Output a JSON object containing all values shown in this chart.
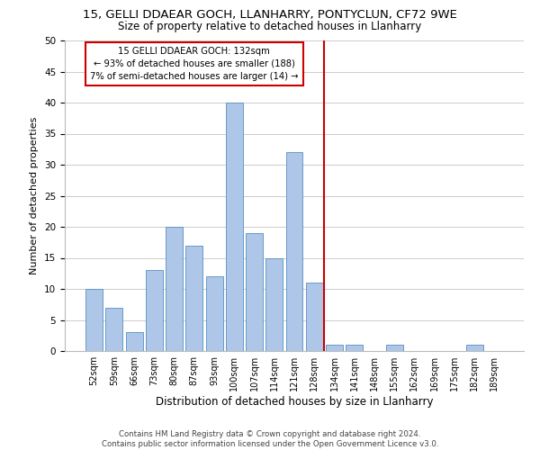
{
  "title": "15, GELLI DDAEAR GOCH, LLANHARRY, PONTYCLUN, CF72 9WE",
  "subtitle": "Size of property relative to detached houses in Llanharry",
  "xlabel": "Distribution of detached houses by size in Llanharry",
  "ylabel": "Number of detached properties",
  "bar_labels": [
    "52sqm",
    "59sqm",
    "66sqm",
    "73sqm",
    "80sqm",
    "87sqm",
    "93sqm",
    "100sqm",
    "107sqm",
    "114sqm",
    "121sqm",
    "128sqm",
    "134sqm",
    "141sqm",
    "148sqm",
    "155sqm",
    "162sqm",
    "169sqm",
    "175sqm",
    "182sqm",
    "189sqm"
  ],
  "bar_values": [
    10,
    7,
    3,
    13,
    20,
    17,
    12,
    40,
    19,
    15,
    32,
    11,
    1,
    1,
    0,
    1,
    0,
    0,
    0,
    1,
    0
  ],
  "bar_color": "#aec6e8",
  "bar_edge_color": "#5590c0",
  "property_line_label": "15 GELLI DDAEAR GOCH: 132sqm",
  "annotation_line1": "← 93% of detached houses are smaller (188)",
  "annotation_line2": "7% of semi-detached houses are larger (14) →",
  "annotation_box_color": "#cc0000",
  "annotation_box_face": "#ffffff",
  "vline_color": "#cc0000",
  "vline_x": 11.5,
  "ylim": [
    0,
    50
  ],
  "yticks": [
    0,
    5,
    10,
    15,
    20,
    25,
    30,
    35,
    40,
    45,
    50
  ],
  "background_color": "#ffffff",
  "grid_color": "#cccccc",
  "footer_line1": "Contains HM Land Registry data © Crown copyright and database right 2024.",
  "footer_line2": "Contains public sector information licensed under the Open Government Licence v3.0."
}
